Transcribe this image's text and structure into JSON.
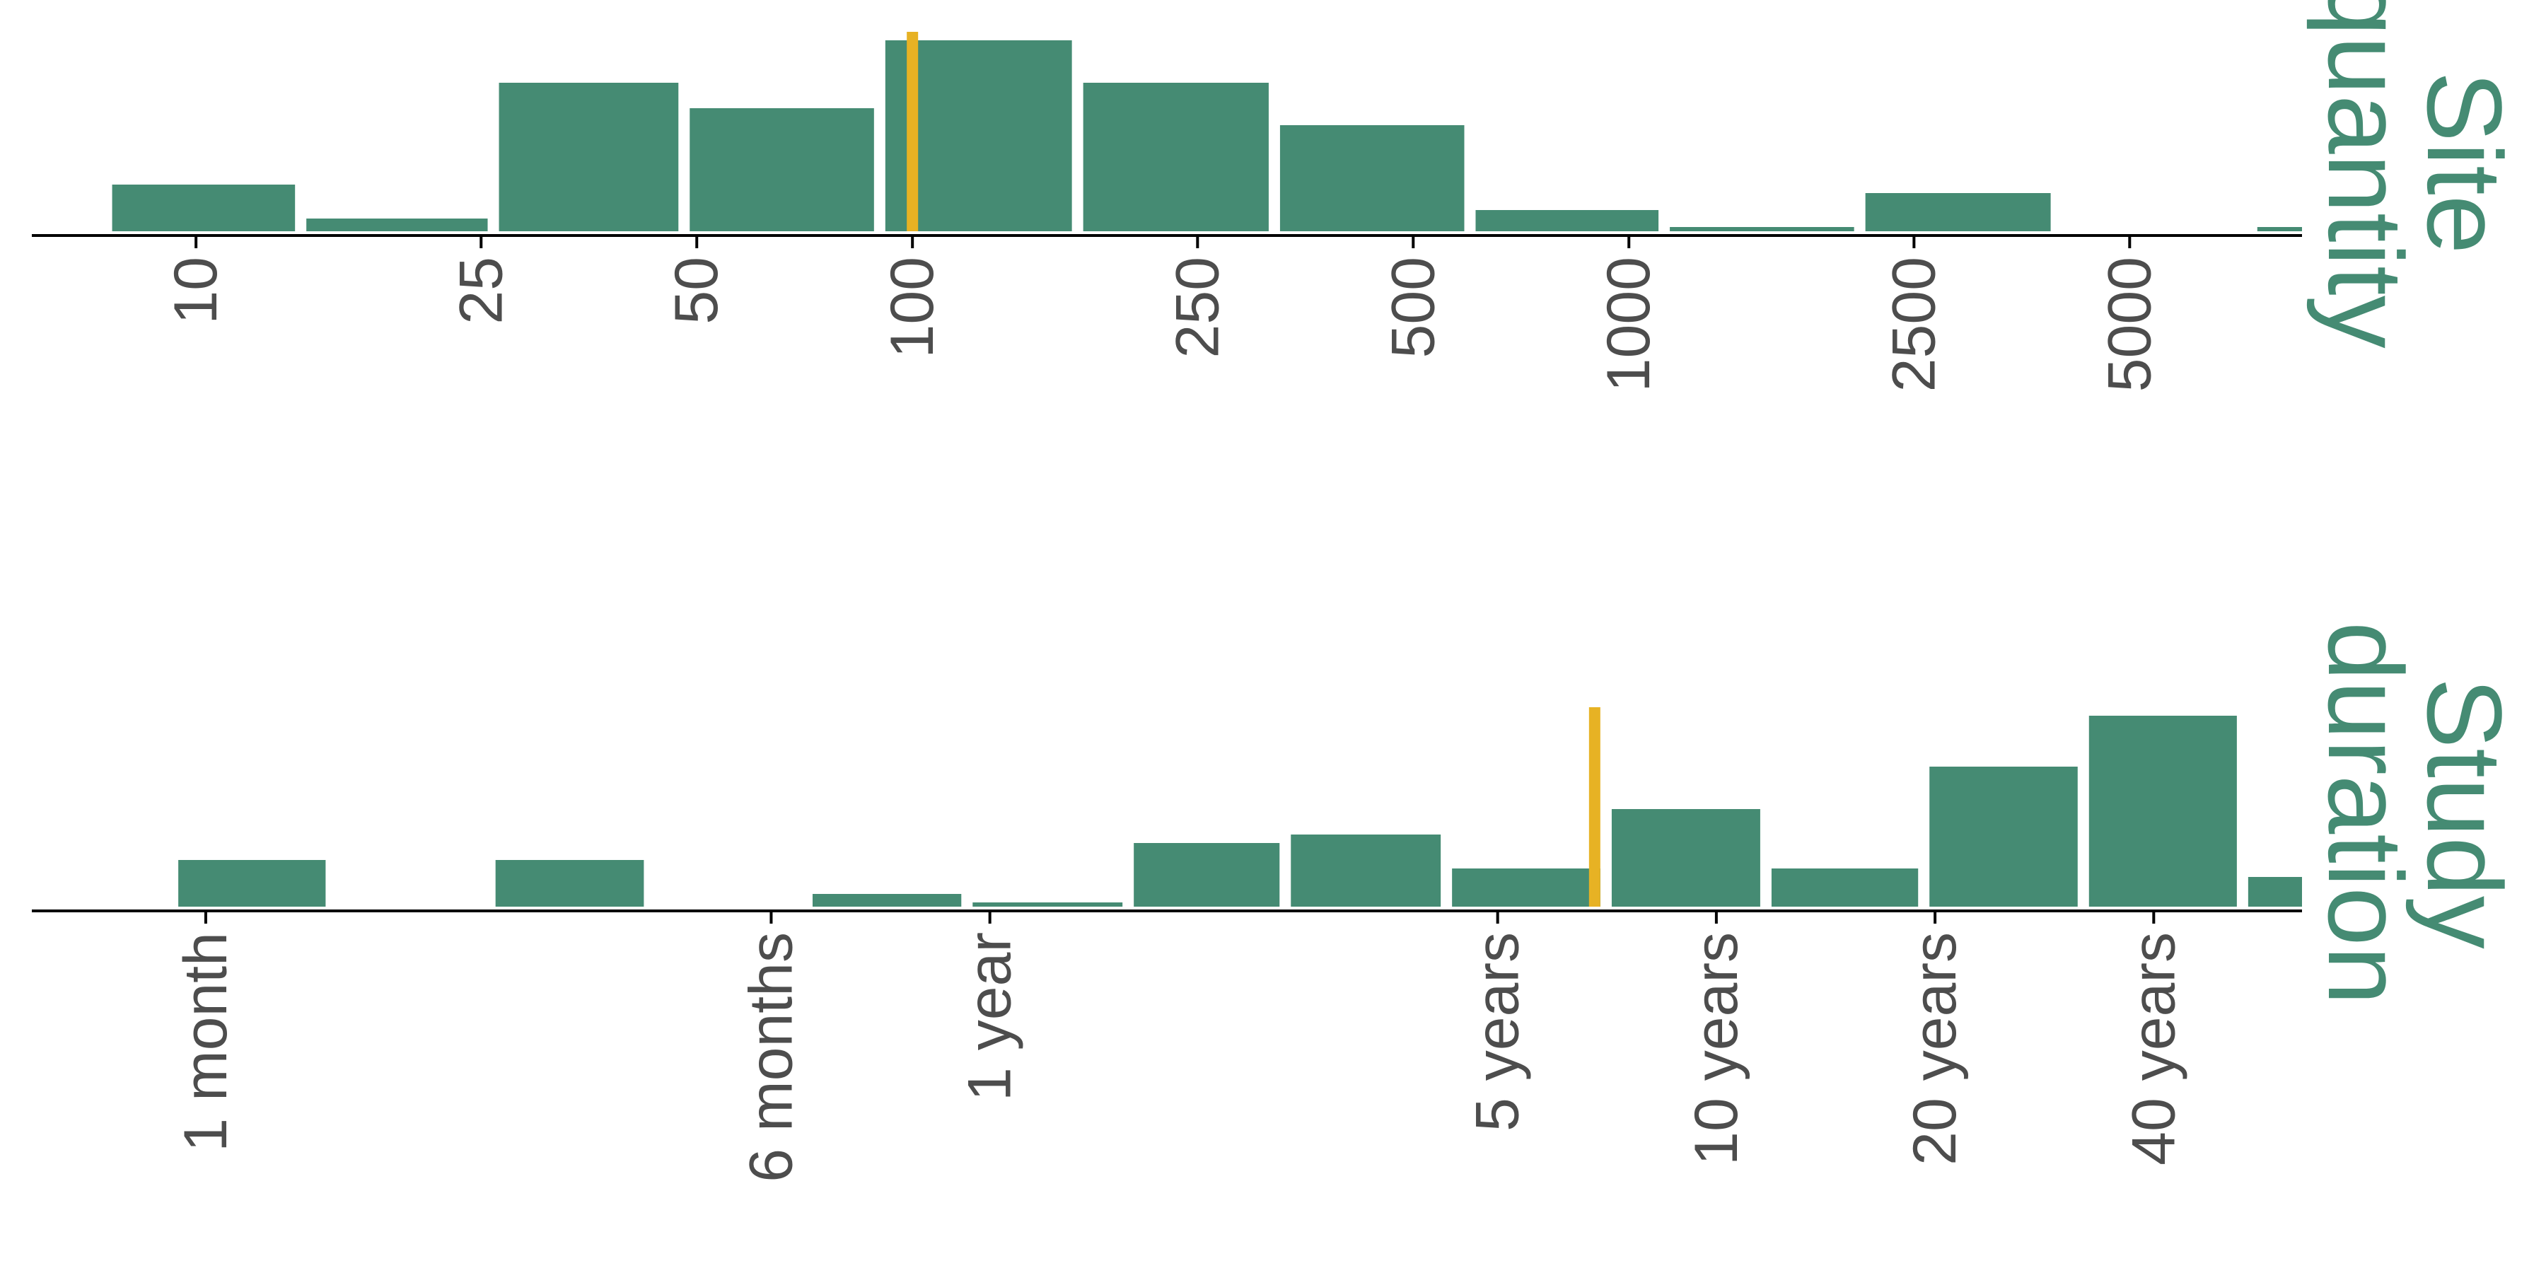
{
  "colors": {
    "bar": "#458b73",
    "marker": "#e7b224",
    "axis": "#000000",
    "tick_text": "#4d4d4d",
    "title": "#458b73",
    "background": "#ffffff"
  },
  "chart_data": [
    {
      "type": "bar",
      "title_lines": [
        "Site",
        "quantity"
      ],
      "x_scale": "log",
      "xlim": [
        5.9,
        8700
      ],
      "ylim": [
        0,
        23
      ],
      "grid": false,
      "legend": "none",
      "ticks": [
        {
          "value": 10,
          "label": "10"
        },
        {
          "value": 25,
          "label": "25"
        },
        {
          "value": 50,
          "label": "50"
        },
        {
          "value": 100,
          "label": "100"
        },
        {
          "value": 250,
          "label": "250"
        },
        {
          "value": 500,
          "label": "500"
        },
        {
          "value": 1000,
          "label": "1000"
        },
        {
          "value": 2500,
          "label": "2500"
        },
        {
          "value": 5000,
          "label": "5000"
        }
      ],
      "bins": [
        {
          "from": 7.5,
          "to": 14,
          "count": 5.5
        },
        {
          "from": 14,
          "to": 26,
          "count": 1.5
        },
        {
          "from": 26,
          "to": 48,
          "count": 17.5
        },
        {
          "from": 48,
          "to": 90,
          "count": 14.5
        },
        {
          "from": 90,
          "to": 170,
          "count": 22.5
        },
        {
          "from": 170,
          "to": 320,
          "count": 17.5
        },
        {
          "from": 320,
          "to": 600,
          "count": 12.5
        },
        {
          "from": 600,
          "to": 1120,
          "count": 2.5
        },
        {
          "from": 1120,
          "to": 2100,
          "count": 0.5
        },
        {
          "from": 2100,
          "to": 3950,
          "count": 4.5
        },
        {
          "from": 3950,
          "to": 7400,
          "count": 0
        },
        {
          "from": 7400,
          "to": 13800,
          "count": 0.5
        }
      ],
      "marker": {
        "value": 100
      }
    },
    {
      "type": "bar",
      "title_lines": [
        "Study",
        "duration"
      ],
      "x_unit": "years",
      "x_scale": "log",
      "xlim": [
        0.048,
        64
      ],
      "ylim": [
        0,
        23
      ],
      "grid": false,
      "legend": "none",
      "ticks": [
        {
          "value": 0.0833,
          "label": "1 month"
        },
        {
          "value": 0.5,
          "label": "6 months"
        },
        {
          "value": 1,
          "label": "1 year"
        },
        {
          "value": 5,
          "label": "5 years"
        },
        {
          "value": 10,
          "label": "10 years"
        },
        {
          "value": 20,
          "label": "20 years"
        },
        {
          "value": 40,
          "label": "40 years"
        }
      ],
      "bins": [
        {
          "from": 0.075,
          "to": 0.124,
          "count": 5.5
        },
        {
          "from": 0.124,
          "to": 0.205,
          "count": 0
        },
        {
          "from": 0.205,
          "to": 0.34,
          "count": 5.5
        },
        {
          "from": 0.34,
          "to": 0.56,
          "count": 0
        },
        {
          "from": 0.56,
          "to": 0.93,
          "count": 1.5
        },
        {
          "from": 0.93,
          "to": 1.55,
          "count": 0.5
        },
        {
          "from": 1.55,
          "to": 2.55,
          "count": 7.5
        },
        {
          "from": 2.55,
          "to": 4.25,
          "count": 8.5
        },
        {
          "from": 4.25,
          "to": 7.05,
          "count": 4.5
        },
        {
          "from": 7.05,
          "to": 11.7,
          "count": 11.5
        },
        {
          "from": 11.7,
          "to": 19.3,
          "count": 4.5
        },
        {
          "from": 19.3,
          "to": 32,
          "count": 16.5
        },
        {
          "from": 32,
          "to": 53,
          "count": 22.5
        },
        {
          "from": 53,
          "to": 88,
          "count": 3.5
        }
      ],
      "marker": {
        "value": 6.8
      }
    }
  ]
}
